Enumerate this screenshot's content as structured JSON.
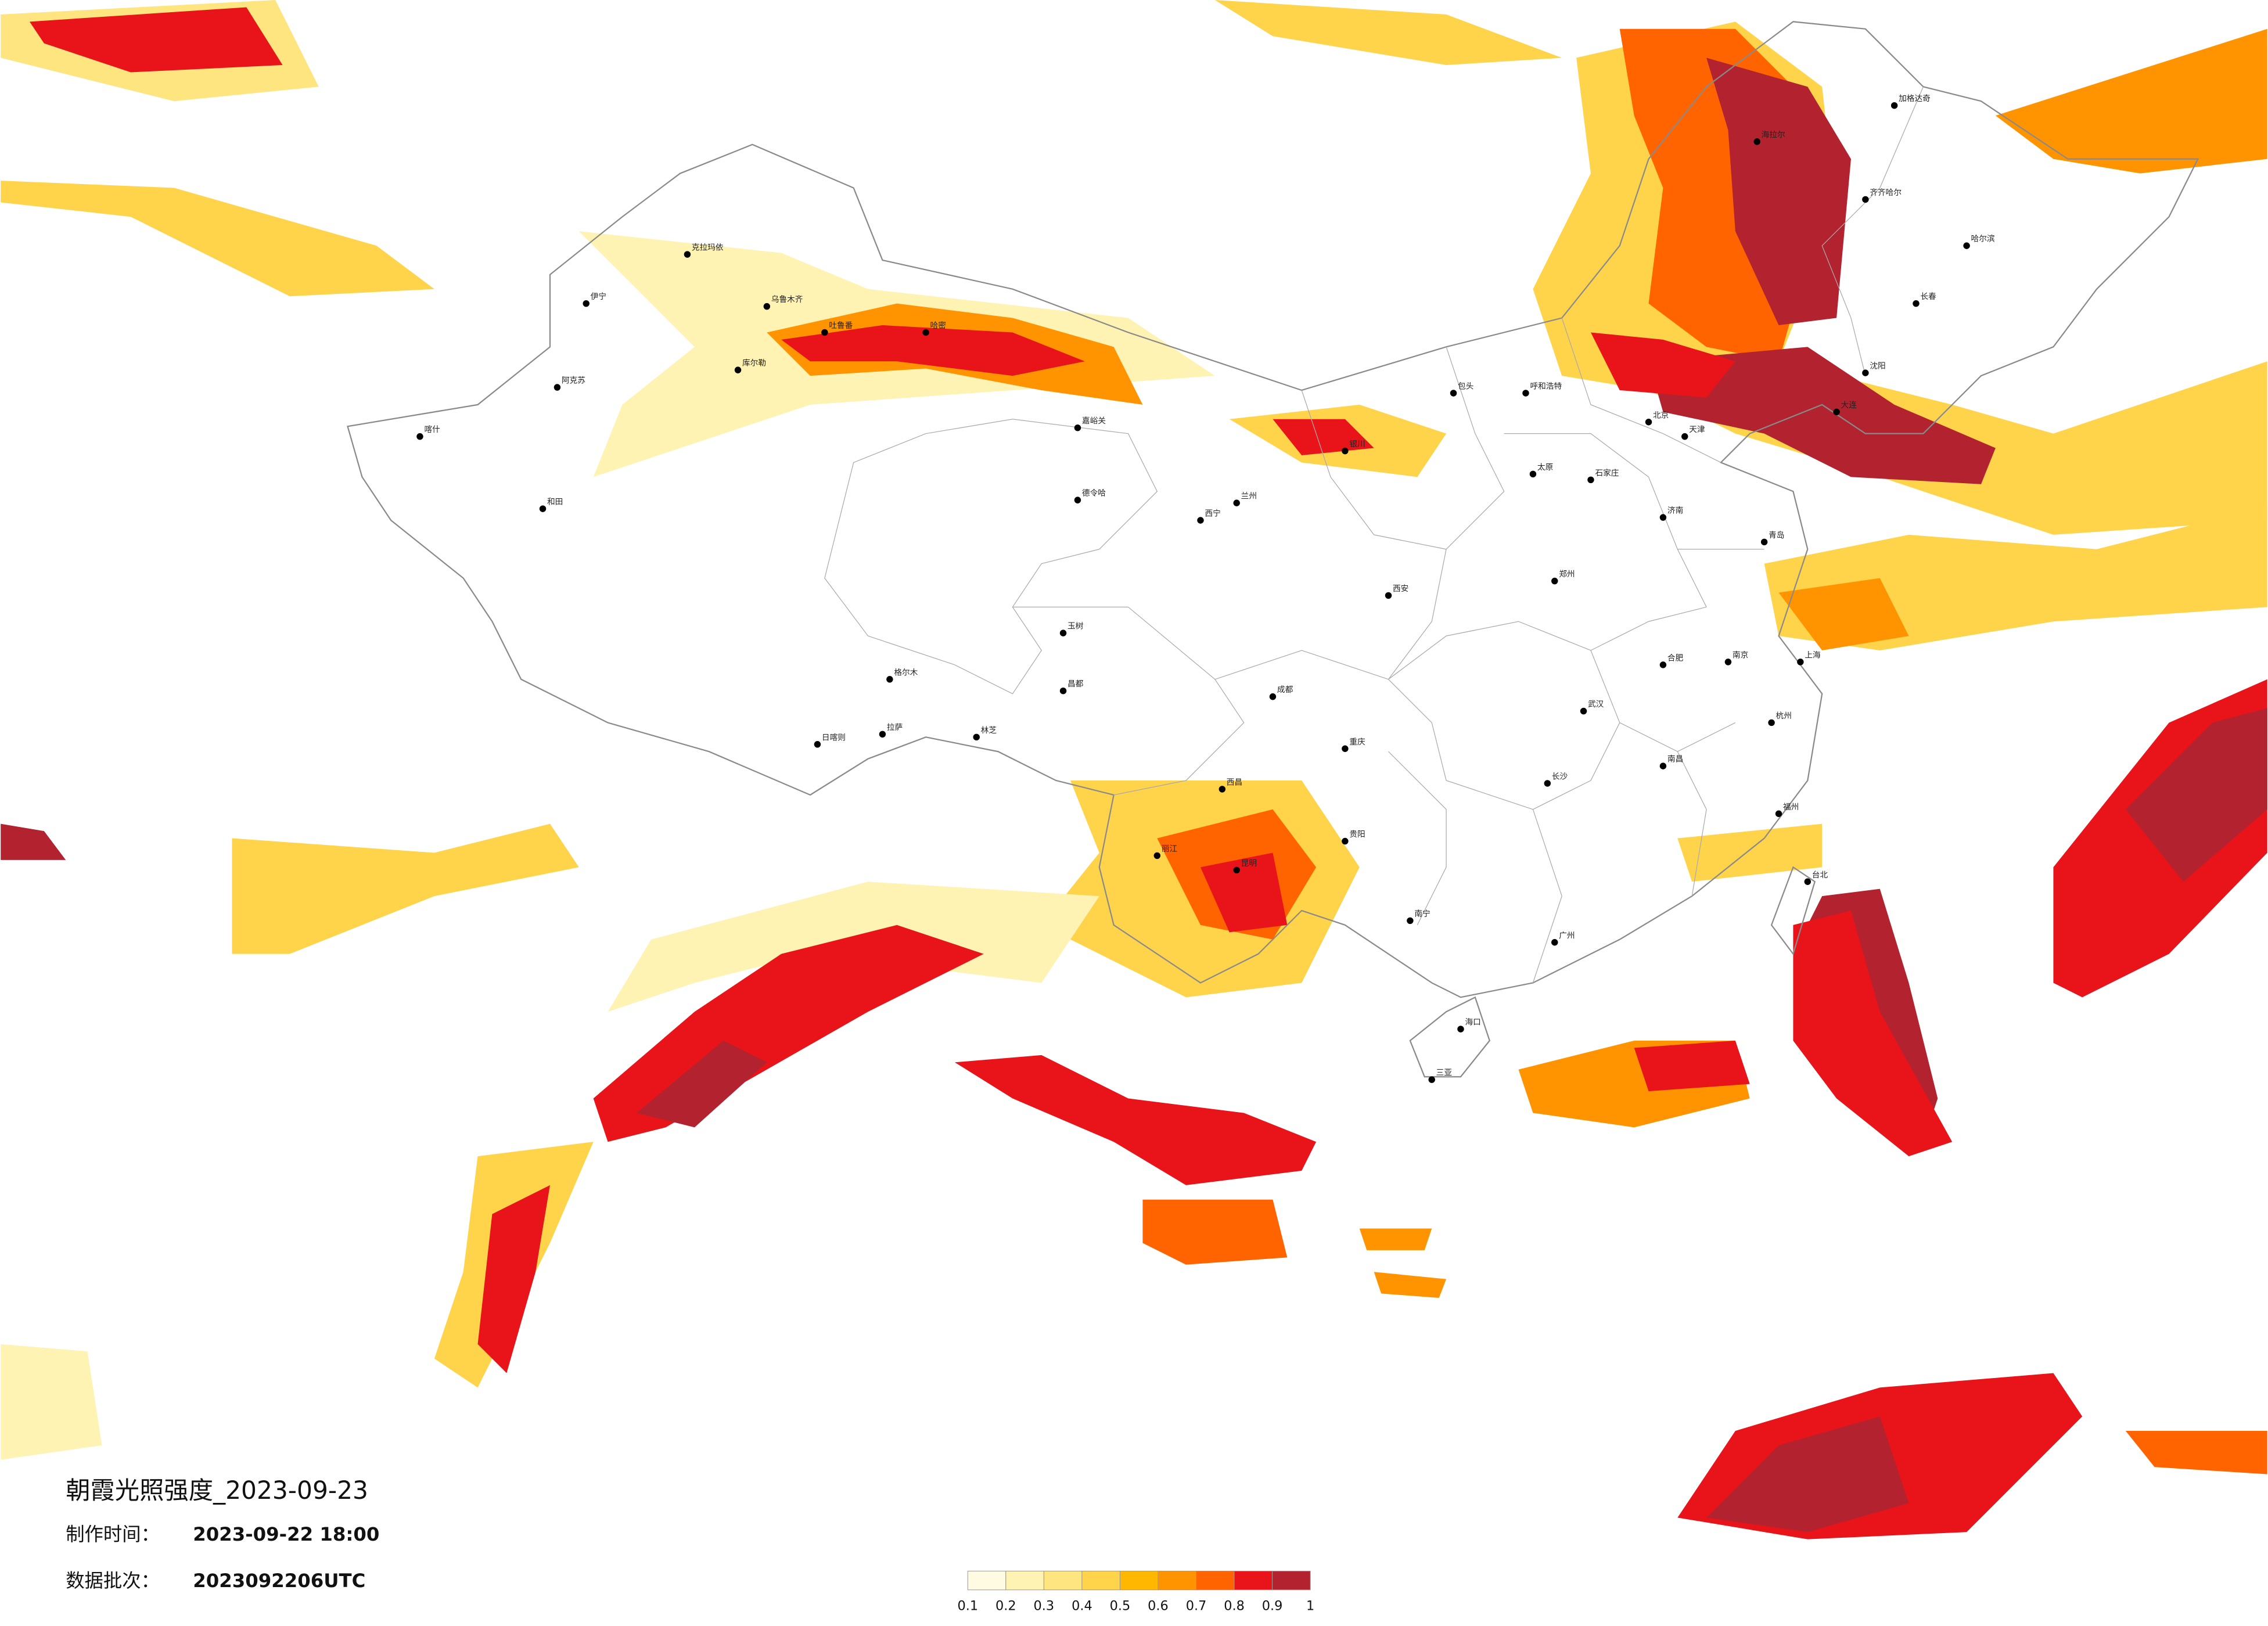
{
  "map": {
    "title": "朝霞光照强度_2023-09-23",
    "made_label": "制作时间：",
    "made_value": "2023-09-22 18:00",
    "batch_label": "数据批次：",
    "batch_value": "2023092206UTC",
    "legend": {
      "colors": [
        "#fffbe2",
        "#fff3b4",
        "#ffe57f",
        "#ffd34a",
        "#ffb700",
        "#ff9400",
        "#ff6400",
        "#e8141a",
        "#b3222f"
      ],
      "ticks": [
        0.1,
        0.2,
        0.3,
        0.4,
        0.5,
        0.6,
        0.7,
        0.8,
        0.9,
        1
      ]
    },
    "cities": [
      "克拉玛依",
      "伊宁",
      "乌鲁木齐",
      "吐鲁番",
      "库尔勒",
      "阿克苏",
      "喀什",
      "和田",
      "嘉峪关",
      "德令哈",
      "西宁",
      "格尔木",
      "拉萨",
      "日喀则",
      "林芝",
      "昌都",
      "玉树",
      "海拉尔",
      "加格达奇",
      "齐齐哈尔",
      "哈尔滨",
      "长春",
      "沈阳",
      "北京",
      "天津",
      "呼和浩特",
      "包头",
      "银川",
      "兰州",
      "西安",
      "郑州",
      "太原",
      "石家庄",
      "济南",
      "南京",
      "上海",
      "武汉",
      "长沙",
      "成都",
      "重庆",
      "贵阳",
      "昆明",
      "南宁",
      "广州",
      "福州",
      "台北",
      "海口",
      "三亚",
      "西昌",
      "丽江",
      "哈密",
      "大连",
      "青岛",
      "杭州",
      "南昌",
      "合肥"
    ]
  }
}
